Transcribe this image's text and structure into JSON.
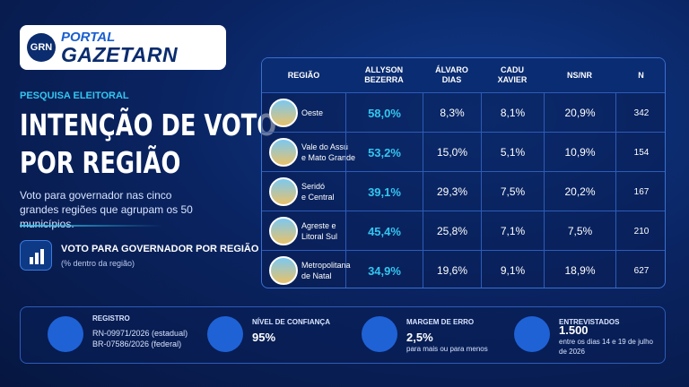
{
  "logo": {
    "badge": "GRN",
    "line1": "PORTAL",
    "line2": "GAZETARN"
  },
  "kicker": "PESQUISA ELEITORAL",
  "title": [
    "INTENÇÃO DE VOTO",
    "POR REGIÃO"
  ],
  "description": "Voto para governador nas cinco grandes regiões que agrupam os 50 municípios.",
  "section": {
    "label": "VOTO PARA GOVERNADOR POR REGIÃO",
    "note": "(% dentro da região)"
  },
  "table": {
    "header": [
      "REGIÃO",
      [
        "ALLYSON",
        "BEZERRA"
      ],
      [
        "ÁLVARO",
        "DIAS"
      ],
      [
        "CADU",
        "XAVIER"
      ],
      "NS/NR",
      "N"
    ],
    "rows": [
      [
        [
          "Oeste"
        ],
        "58,0%",
        "8,3%",
        "8,1%",
        "20,9%",
        "342"
      ],
      [
        [
          "Vale do Assú",
          "e Mato Grande"
        ],
        "53,2%",
        "15,0%",
        "5,1%",
        "10,9%",
        "154"
      ],
      [
        [
          "Seridó",
          "e Central"
        ],
        "39,1%",
        "29,3%",
        "7,5%",
        "20,2%",
        "167"
      ],
      [
        [
          "Agreste e",
          "Litoral Sul"
        ],
        "45,4%",
        "25,8%",
        "7,1%",
        "7,5%",
        "210"
      ],
      [
        [
          "Metropolitana",
          "de Natal"
        ],
        "34,9%",
        "19,6%",
        "9,1%",
        "18,9%",
        "627"
      ]
    ]
  },
  "footer": [
    {
      "label": "REGISTRO",
      "lines": [
        "RN-09971/2026 (estadual)",
        "BR-07586/2026 (federal)"
      ]
    },
    {
      "label": "NÍVEL DE CONFIANÇA",
      "value": "95%"
    },
    {
      "label": "MARGEM DE ERRO",
      "value": "2,5%",
      "note": "para mais ou para menos"
    },
    {
      "label": "ENTREVISTADOS",
      "value": "1.500",
      "note": "entre os dias 14 e 19 de julho de 2026"
    }
  ]
}
